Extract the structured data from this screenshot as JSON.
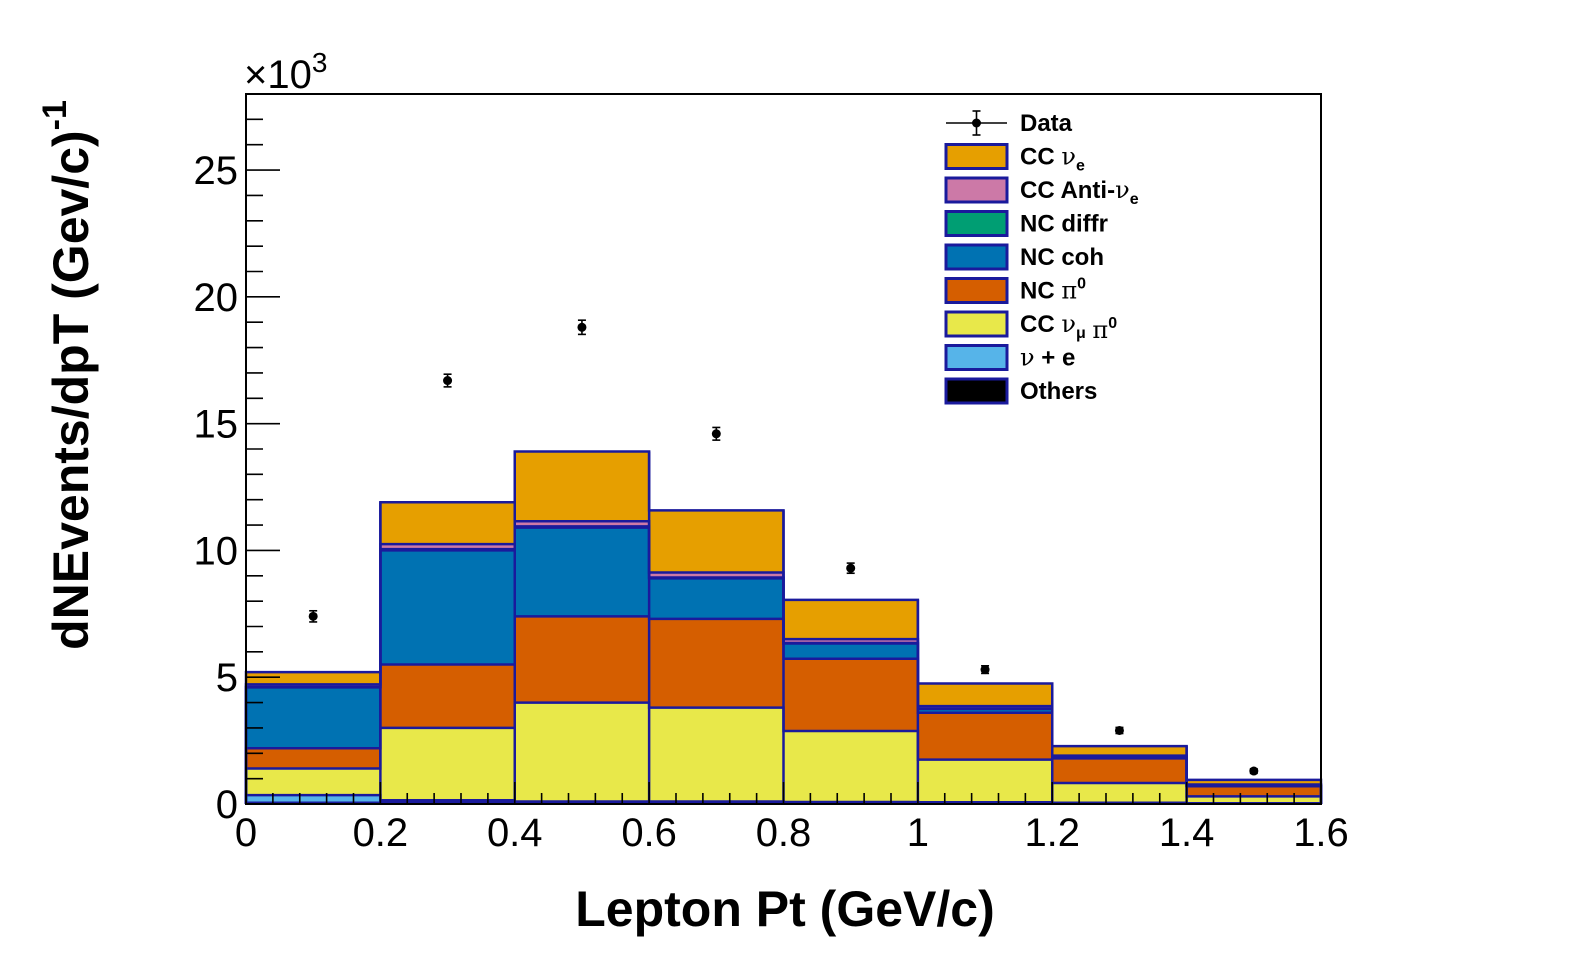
{
  "chart_data": {
    "type": "bar",
    "subtype": "stacked-histogram",
    "title": "",
    "xlabel": "Lepton Pt (GeV/c)",
    "ylabel": {
      "main": "dNEvents/dpT (Gev/c)",
      "exponent": "-1"
    },
    "axis_multiplier": {
      "prefix": "×10",
      "exponent": "3"
    },
    "xlim": [
      0,
      1.6
    ],
    "ylim": [
      0,
      28
    ],
    "bin_edges": [
      0,
      0.2,
      0.4,
      0.6,
      0.8,
      1.0,
      1.2,
      1.4,
      1.6
    ],
    "x_ticks": [
      0,
      0.2,
      0.4,
      0.6,
      0.8,
      1,
      1.2,
      1.4,
      1.6
    ],
    "x_tick_labels": [
      "0",
      "0.2",
      "0.4",
      "0.6",
      "0.8",
      "1",
      "1.2",
      "1.4",
      "1.6"
    ],
    "y_ticks": [
      0,
      5,
      10,
      15,
      20,
      25
    ],
    "y_tick_labels": [
      "0",
      "5",
      "10",
      "15",
      "20",
      "25"
    ],
    "y_units_note": "values in thousands (×10^3)",
    "stack_order_bottom_to_top": [
      "Others",
      "ν + e",
      "CC ν_μ π0",
      "NC π0",
      "NC coh",
      "NC diffr",
      "CC Anti-ν_e",
      "CC ν_e"
    ],
    "series": [
      {
        "name": "Others",
        "color": "#000000",
        "values": [
          0.05,
          0.05,
          0.05,
          0.05,
          0.05,
          0.05,
          0.03,
          0.02
        ]
      },
      {
        "name": "ν + e",
        "color": "#56b4e9",
        "values": [
          0.3,
          0.1,
          0.05,
          0.05,
          0.03,
          0.02,
          0.02,
          0.01
        ]
      },
      {
        "name": "CC ν_μ π0",
        "color": "#e8e84a",
        "values": [
          1.05,
          2.85,
          3.9,
          3.7,
          2.8,
          1.68,
          0.78,
          0.27
        ]
      },
      {
        "name": "NC π0",
        "color": "#d55e00",
        "values": [
          0.8,
          2.5,
          3.4,
          3.5,
          2.85,
          1.85,
          0.97,
          0.4
        ]
      },
      {
        "name": "NC coh",
        "color": "#0072b2",
        "values": [
          2.4,
          4.5,
          3.5,
          1.6,
          0.6,
          0.15,
          0.05,
          0.02
        ]
      },
      {
        "name": "NC diffr",
        "color": "#009e73",
        "values": [
          0.02,
          0.05,
          0.05,
          0.03,
          0.02,
          0.01,
          0.01,
          0.0
        ]
      },
      {
        "name": "CC Anti-ν_e",
        "color": "#cc79a7",
        "values": [
          0.1,
          0.2,
          0.2,
          0.2,
          0.15,
          0.1,
          0.05,
          0.05
        ]
      },
      {
        "name": "CC ν_e",
        "color": "#e69f00",
        "values": [
          0.48,
          1.65,
          2.75,
          2.45,
          1.55,
          0.89,
          0.37,
          0.18
        ]
      }
    ],
    "data": {
      "name": "Data",
      "x": [
        0.1,
        0.3,
        0.5,
        0.7,
        0.9,
        1.1,
        1.3,
        1.5
      ],
      "y": [
        7.4,
        16.7,
        18.8,
        14.6,
        9.3,
        5.3,
        2.9,
        1.3
      ],
      "err": [
        0.22,
        0.25,
        0.28,
        0.25,
        0.2,
        0.15,
        0.12,
        0.09
      ]
    },
    "legend": {
      "position": "top-right",
      "entries": [
        {
          "key": "data",
          "label": "Data",
          "marker": "point",
          "color": "#000000"
        },
        {
          "key": "cc-nue",
          "label": "CC  ν_e",
          "color": "#e69f00"
        },
        {
          "key": "cc-antinue",
          "label": "CC Anti-ν_e",
          "color": "#cc79a7"
        },
        {
          "key": "nc-diffr",
          "label": "NC diffr",
          "color": "#009e73"
        },
        {
          "key": "nc-coh",
          "label": "NC coh",
          "color": "#0072b2"
        },
        {
          "key": "nc-pi0",
          "label": "NC  π0",
          "color": "#d55e00"
        },
        {
          "key": "cc-numu-pi0",
          "label": "CC  ν_μ  π0",
          "color": "#e8e84a"
        },
        {
          "key": "nu-e",
          "label": "ν + e",
          "color": "#56b4e9"
        },
        {
          "key": "others",
          "label": "Others",
          "color": "#000000"
        }
      ]
    },
    "outline_color": "#1a1a9c"
  }
}
